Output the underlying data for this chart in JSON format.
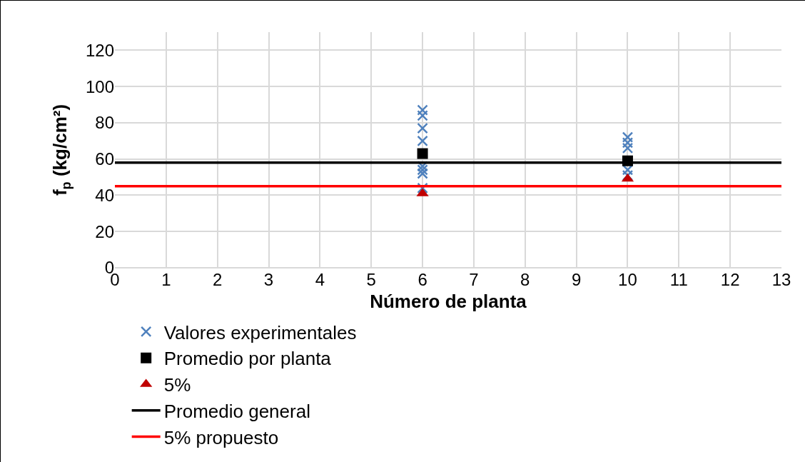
{
  "chart_data": {
    "type": "scatter",
    "xlabel": "Número de planta",
    "ylabel": "f$_{p}$ (kg/cm²)",
    "xlim": [
      0,
      13
    ],
    "xticks": [
      0,
      1,
      2,
      3,
      4,
      5,
      6,
      7,
      8,
      9,
      10,
      11,
      12,
      13
    ],
    "ylim": [
      0,
      130
    ],
    "yticks": [
      0,
      20,
      40,
      60,
      80,
      100,
      120
    ],
    "grid": true,
    "legend": "bottom",
    "series": [
      {
        "name": "Valores experimentales",
        "marker": "cross",
        "color": "#4f81bd",
        "x": [
          6,
          6,
          6,
          6,
          6,
          6,
          6,
          6,
          10,
          10,
          10,
          10,
          10
        ],
        "values": [
          87,
          84,
          77,
          70,
          56,
          54,
          52,
          44,
          72,
          69,
          66,
          54,
          51
        ]
      },
      {
        "name": "Promedio por planta",
        "marker": "square",
        "color": "#000000",
        "x": [
          6,
          10
        ],
        "values": [
          63,
          59
        ]
      },
      {
        "name": "5%",
        "marker": "triangle",
        "color": "#c00000",
        "x": [
          6,
          10
        ],
        "values": [
          41,
          49
        ]
      },
      {
        "name": "Promedio general",
        "type": "line",
        "marker": "none",
        "color": "#000000",
        "x": [
          0,
          13
        ],
        "values": [
          58,
          58
        ]
      },
      {
        "name": "5% propuesto",
        "type": "line",
        "marker": "none",
        "color": "#ff0000",
        "x": [
          0,
          13
        ],
        "values": [
          45,
          45
        ]
      }
    ]
  }
}
